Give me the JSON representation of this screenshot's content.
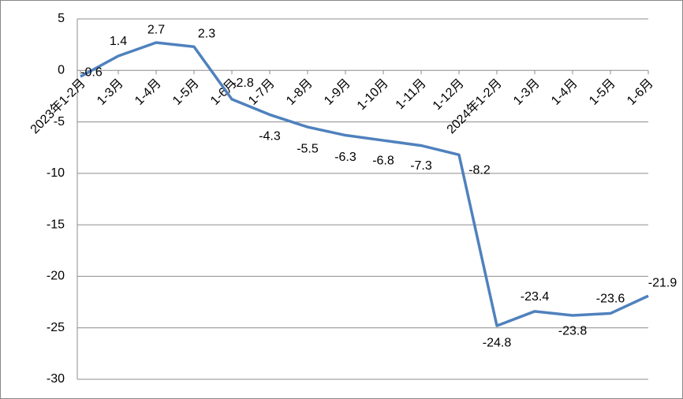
{
  "chart_data": {
    "type": "line",
    "categories": [
      "2023年1-2月",
      "1-3月",
      "1-4月",
      "1-5月",
      "1-6月",
      "1-7月",
      "1-8月",
      "1-9月",
      "1-10月",
      "1-11月",
      "1-12月",
      "2024年1-2月",
      "1-3月",
      "1-4月",
      "1-5月",
      "1-6月"
    ],
    "series": [
      {
        "color": "#4f81bd",
        "values": [
          -0.6,
          1.4,
          2.7,
          2.3,
          -2.8,
          -4.3,
          -5.5,
          -6.3,
          -6.8,
          -7.3,
          -8.2,
          -24.8,
          -23.4,
          -23.8,
          -23.6,
          -21.9
        ]
      }
    ],
    "ylim": [
      -30,
      5
    ],
    "yticks": [
      -30,
      -25,
      -20,
      -15,
      -10,
      -5,
      0,
      5
    ],
    "grid": true
  }
}
